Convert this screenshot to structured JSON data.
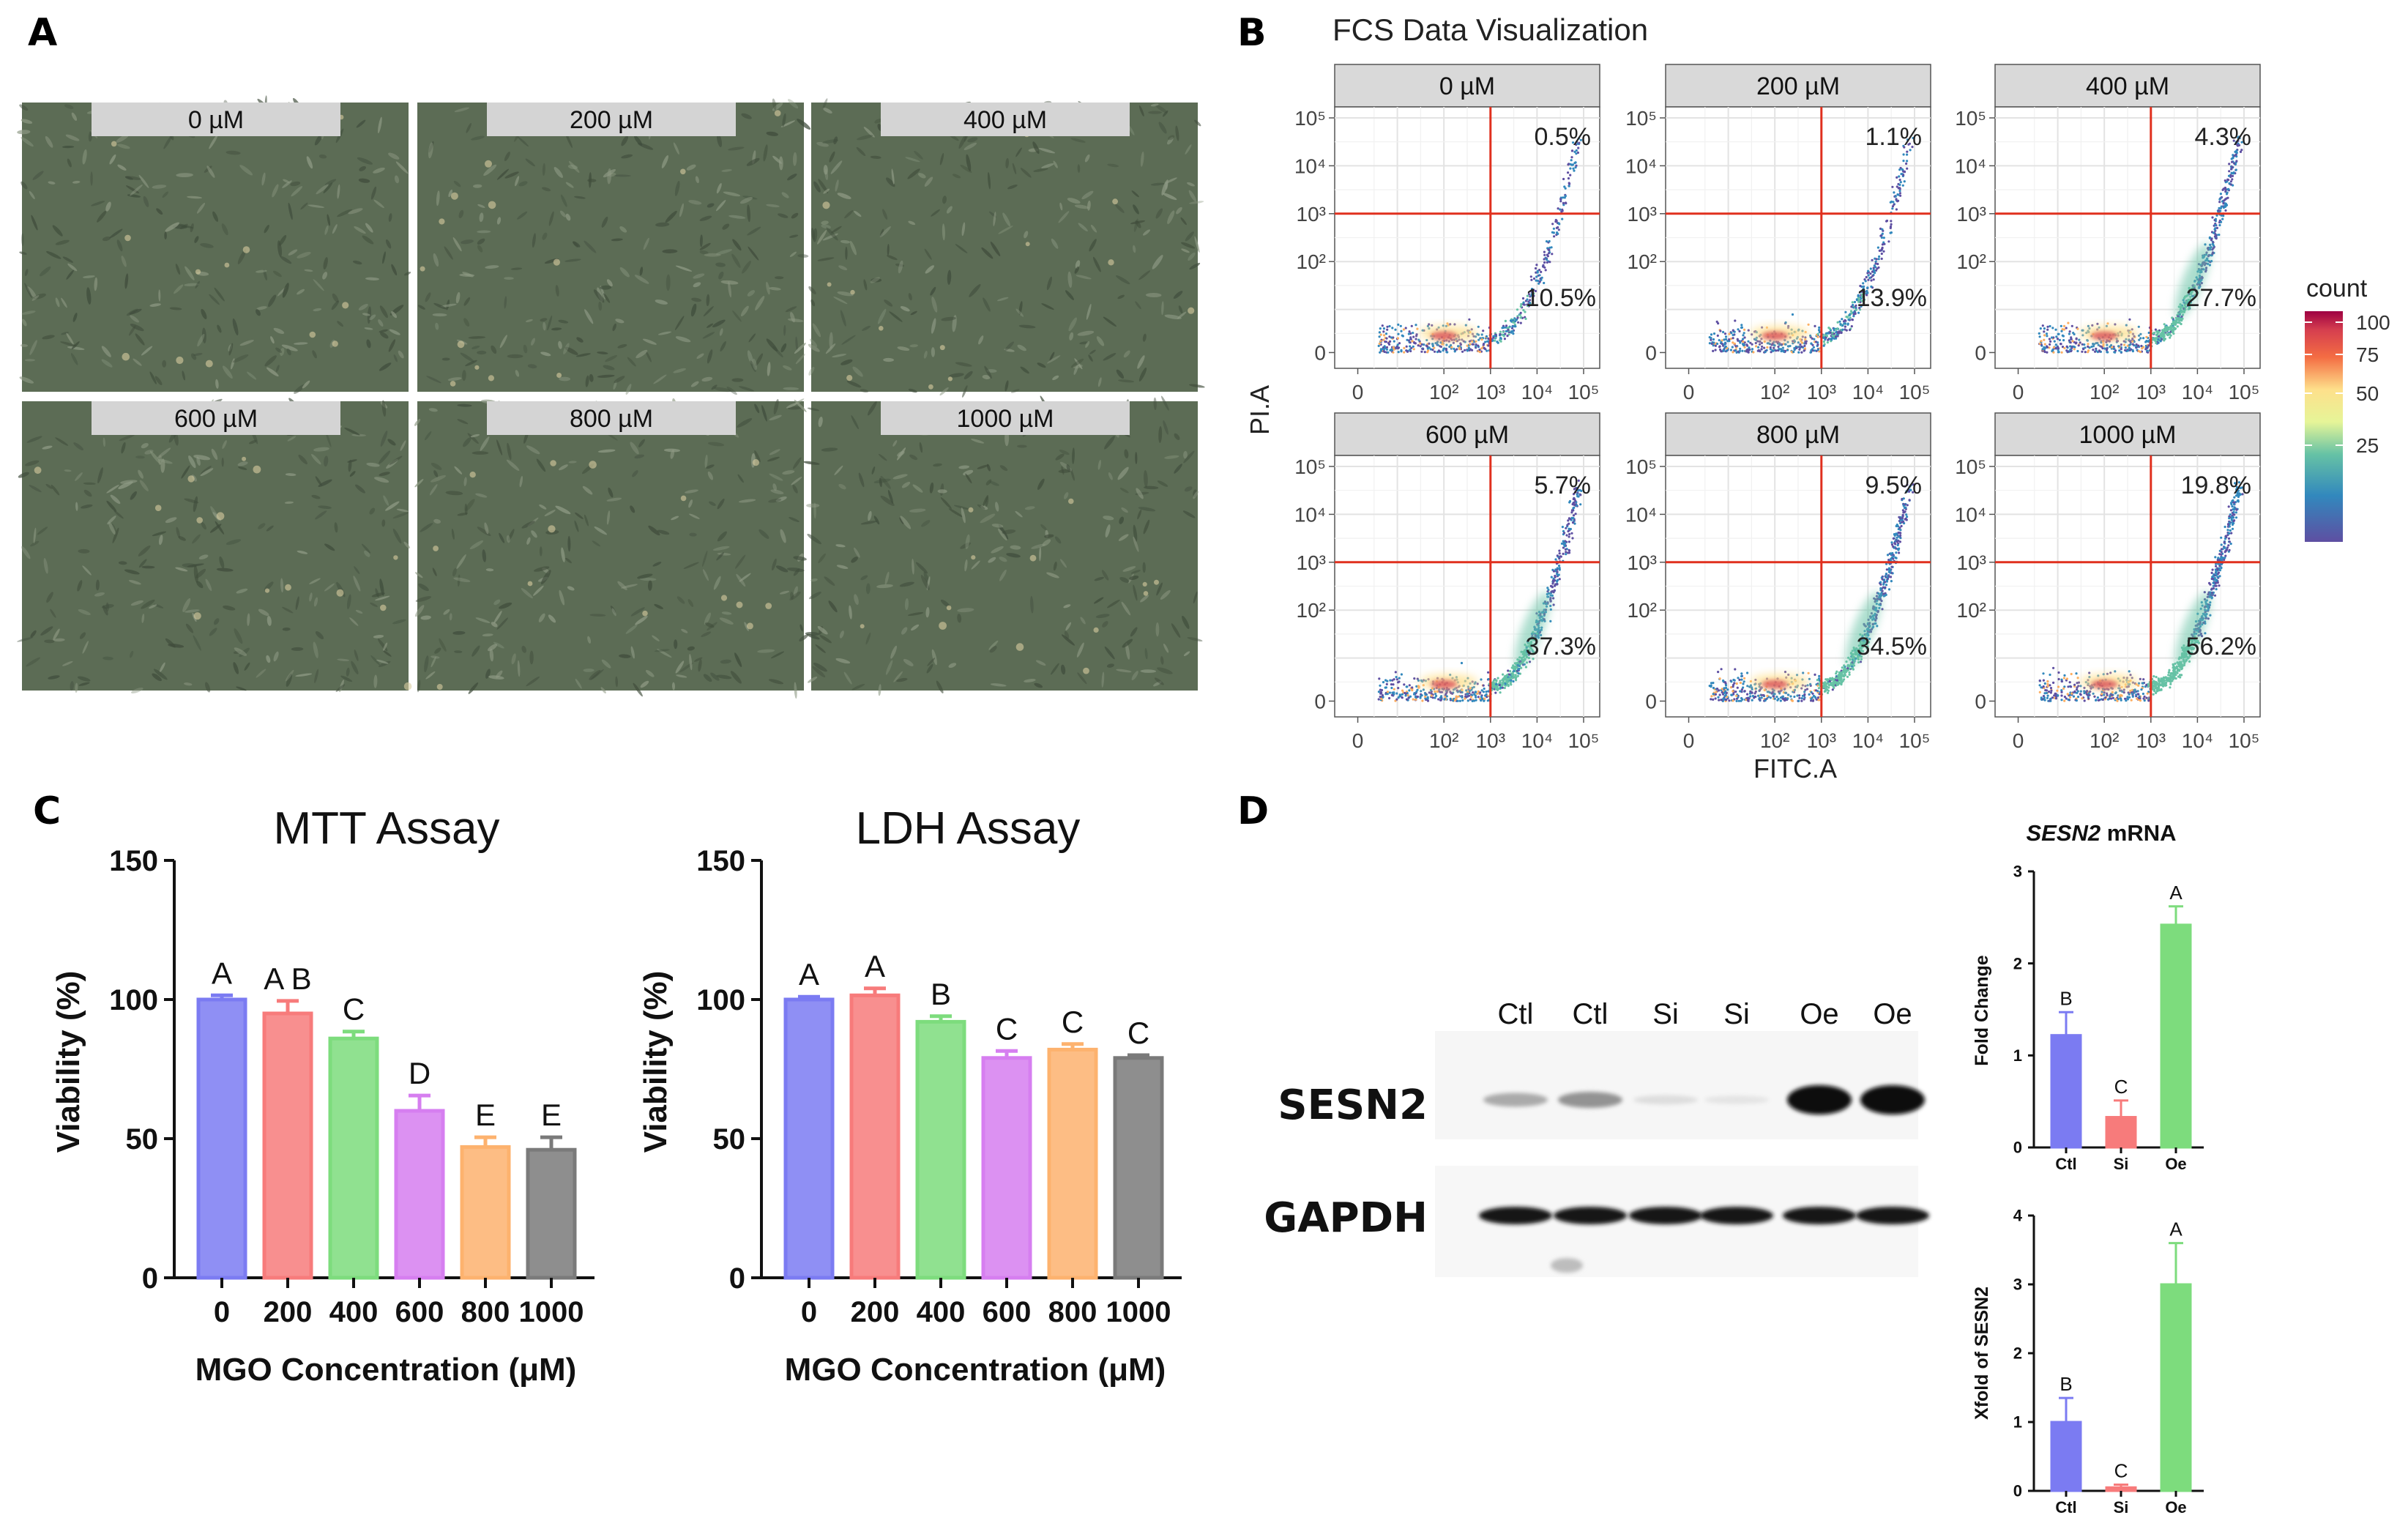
{
  "panel_letters": {
    "a": "A",
    "b": "B",
    "c": "C",
    "d": "D"
  },
  "colors": {
    "microscopy_bg": "#5c6c55",
    "strip_bg": "#d9d9d9",
    "gate": "#e0301e",
    "bar_blue": "#7b7bf2",
    "bar_red": "#f77b7b",
    "bar_green": "#7ddc7d",
    "bar_purple": "#d67ef0",
    "bar_orange": "#fdb26e",
    "bar_gray": "#7a7a7a"
  },
  "panel_a": {
    "conditions": [
      "0 µM",
      "200 µM",
      "400 µM",
      "600 µM",
      "800 µM",
      "1000 µM"
    ]
  },
  "chart_data": [
    {
      "id": "facs",
      "type": "scatter",
      "title": "FCS Data Visualization",
      "xlabel": "FITC.A",
      "ylabel": "PI.A",
      "facets": [
        "0 µM",
        "200 µM",
        "400 µM",
        "600 µM",
        "800 µM",
        "1000 µM"
      ],
      "upper_right_pct": [
        "0.5%",
        "1.1%",
        "4.3%",
        "5.7%",
        "9.5%",
        "19.8%"
      ],
      "lower_right_pct": [
        "10.5%",
        "13.9%",
        "27.7%",
        "37.3%",
        "34.5%",
        "56.2%"
      ],
      "x_tick_labels": [
        "0",
        "10²",
        "10³",
        "10⁴",
        "10⁵"
      ],
      "y_tick_labels": [
        "0",
        "10²",
        "10³",
        "10⁴",
        "10⁵"
      ],
      "gate": {
        "x": 1000,
        "y": 1000
      },
      "legend": {
        "title": "count",
        "ticks": [
          100,
          75,
          50,
          25
        ],
        "placement": "right"
      }
    },
    {
      "id": "mtt",
      "type": "bar",
      "title": "MTT Assay",
      "xlabel": "MGO Concentration (μM)",
      "ylabel": "Viability (%)",
      "categories": [
        "0",
        "200",
        "400",
        "600",
        "800",
        "1000"
      ],
      "values": [
        100,
        95,
        86,
        60,
        47,
        46
      ],
      "errors": [
        1.5,
        4.5,
        2.5,
        5.5,
        3.5,
        4.5
      ],
      "letters": [
        "A",
        "A B",
        "C",
        "D",
        "E",
        "E"
      ],
      "ylim": [
        0,
        150
      ],
      "yticks": [
        0,
        50,
        100,
        150
      ]
    },
    {
      "id": "ldh",
      "type": "bar",
      "title": "LDH Assay",
      "xlabel": "MGO Concentration (μM)",
      "ylabel": "Viability (%)",
      "categories": [
        "0",
        "200",
        "400",
        "600",
        "800",
        "1000"
      ],
      "values": [
        100,
        101.5,
        92,
        79,
        82,
        79
      ],
      "errors": [
        1,
        2.5,
        2,
        2.5,
        2,
        1
      ],
      "letters": [
        "A",
        "A",
        "B",
        "C",
        "C",
        "C"
      ],
      "ylim": [
        0,
        150
      ],
      "yticks": [
        0,
        50,
        100,
        150
      ]
    },
    {
      "id": "sesn2_mrna",
      "type": "bar",
      "title_italic": "SESN2",
      "title_rest": " mRNA",
      "ylabel": "Fold Change",
      "categories": [
        "Ctl",
        "Si",
        "Oe"
      ],
      "values": [
        1.22,
        0.33,
        2.42
      ],
      "errors": [
        0.25,
        0.18,
        0.2
      ],
      "letters": [
        "B",
        "C",
        "A"
      ],
      "ylim": [
        0,
        3
      ],
      "yticks": [
        0,
        1,
        2,
        3
      ]
    },
    {
      "id": "sesn2_protein",
      "type": "bar",
      "ylabel": "Xfold of SESN2",
      "categories": [
        "Ctl",
        "Si",
        "Oe"
      ],
      "values": [
        1.0,
        0.05,
        3.0
      ],
      "errors": [
        0.35,
        0.04,
        0.6
      ],
      "letters": [
        "B",
        "C",
        "A"
      ],
      "ylim": [
        0,
        4
      ],
      "yticks": [
        0,
        1,
        2,
        3,
        4
      ]
    }
  ],
  "western_blot": {
    "lanes": [
      "Ctl",
      "Ctl",
      "Si",
      "Si",
      "Oe",
      "Oe"
    ],
    "proteins": [
      "SESN2",
      "GAPDH"
    ],
    "sesn2_intensity": [
      0.3,
      0.4,
      0.08,
      0.05,
      1.0,
      1.0
    ]
  }
}
